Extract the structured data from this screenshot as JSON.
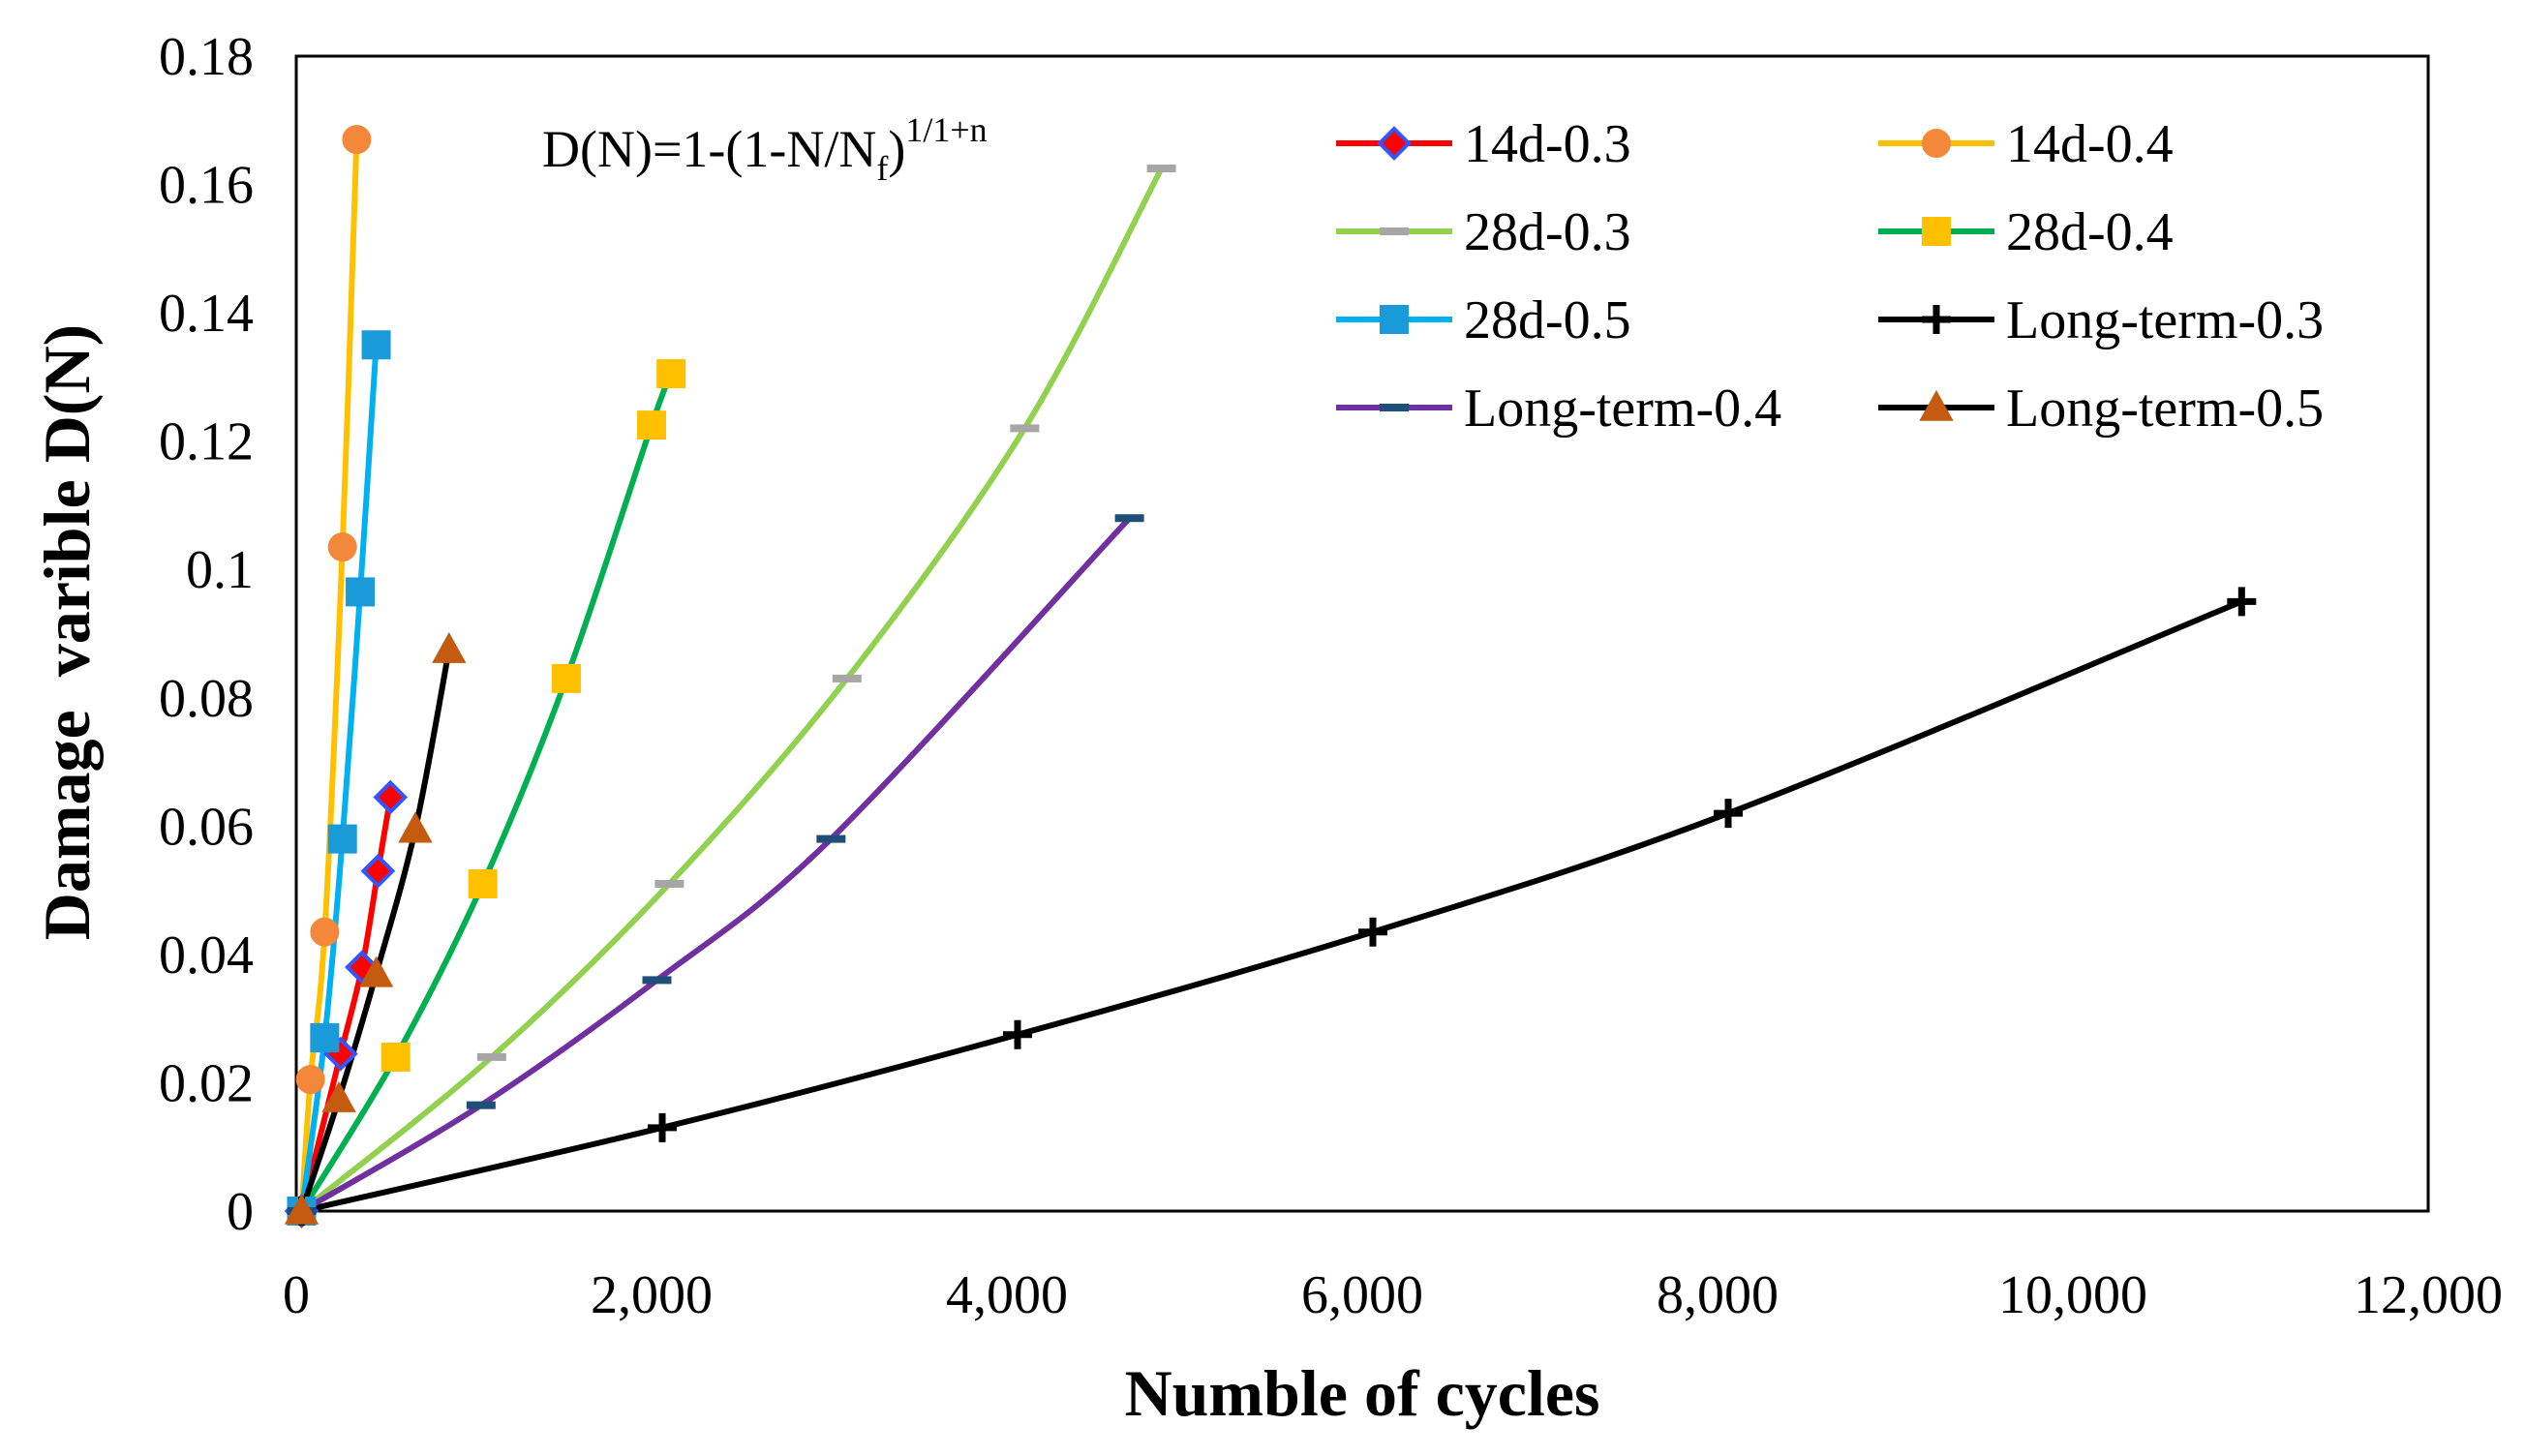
{
  "chart_data": {
    "type": "line",
    "title": "",
    "xlabel": "Numble of cycles",
    "ylabel": "Damage  varible D(N)",
    "xlim": [
      0,
      12000
    ],
    "ylim": [
      0,
      0.18
    ],
    "x_ticks": [
      0,
      2000,
      4000,
      6000,
      8000,
      10000,
      12000
    ],
    "x_tick_labels": [
      "0",
      "2,000",
      "4,000",
      "6,000",
      "8,000",
      "10,000",
      "12,000"
    ],
    "y_ticks": [
      0,
      0.02,
      0.04,
      0.06,
      0.08,
      0.1,
      0.12,
      0.14,
      0.16,
      0.18
    ],
    "y_tick_labels": [
      "0",
      "0.02",
      "0.04",
      "0.06",
      "0.08",
      "0.1",
      "0.12",
      "0.14",
      "0.16",
      "0.18"
    ],
    "grid": false,
    "legend_position": "top-right",
    "annotation": {
      "base": "D(N)=1-(1-N/N",
      "sub": "f",
      "close": ")",
      "sup": "1/1+n"
    },
    "series": [
      {
        "name": "14d-0.3",
        "color": "#ff0000",
        "marker": "diamond",
        "marker_fill": "#ff0000",
        "marker_stroke": "#3355ff",
        "x": [
          30,
          250,
          370,
          460,
          530
        ],
        "y": [
          0.0,
          0.0245,
          0.038,
          0.053,
          0.0645
        ]
      },
      {
        "name": "14d-0.4",
        "color": "#ffc000",
        "marker": "circle",
        "marker_fill": "#f4883a",
        "marker_stroke": "#f4883a",
        "x": [
          30,
          80,
          160,
          260,
          340
        ],
        "y": [
          0.0,
          0.0205,
          0.0435,
          0.1035,
          0.167
        ]
      },
      {
        "name": "28d-0.3",
        "color": "#92d050",
        "marker": "dash",
        "marker_fill": "#a6a6a6",
        "marker_stroke": "#a6a6a6",
        "x": [
          30,
          1100,
          2100,
          3100,
          4100,
          4870
        ],
        "y": [
          0.0,
          0.024,
          0.051,
          0.083,
          0.122,
          0.1625
        ]
      },
      {
        "name": "28d-0.4",
        "color": "#00b050",
        "marker": "square",
        "marker_fill": "#ffc000",
        "marker_stroke": "#ffc000",
        "x": [
          30,
          560,
          1050,
          1520,
          2000,
          2110
        ],
        "y": [
          0.0,
          0.024,
          0.051,
          0.083,
          0.1225,
          0.1305
        ]
      },
      {
        "name": "28d-0.5",
        "color": "#00b0f0",
        "marker": "square",
        "marker_fill": "#1a9ad9",
        "marker_stroke": "#1a9ad9",
        "x": [
          30,
          160,
          260,
          360,
          450
        ],
        "y": [
          0.0,
          0.027,
          0.058,
          0.0965,
          0.135
        ]
      },
      {
        "name": "Long-term-0.3",
        "color": "#000000",
        "marker": "plus",
        "marker_fill": "#000000",
        "marker_stroke": "#000000",
        "x": [
          30,
          2060,
          4060,
          6060,
          8060,
          10950
        ],
        "y": [
          0.0,
          0.013,
          0.0275,
          0.0435,
          0.062,
          0.095
        ]
      },
      {
        "name": "Long-term-0.4",
        "color": "#7030a0",
        "marker": "dash",
        "marker_fill": "#1f4e79",
        "marker_stroke": "#1f4e79",
        "x": [
          30,
          1040,
          2030,
          3010,
          4690
        ],
        "y": [
          0.0,
          0.0165,
          0.036,
          0.058,
          0.108
        ]
      },
      {
        "name": "Long-term-0.5",
        "color": "#000000",
        "marker": "triangle",
        "marker_fill": "#c55a11",
        "marker_stroke": "#c55a11",
        "x": [
          30,
          240,
          450,
          670,
          860
        ],
        "y": [
          0.0,
          0.0175,
          0.037,
          0.0595,
          0.0875
        ]
      }
    ]
  }
}
